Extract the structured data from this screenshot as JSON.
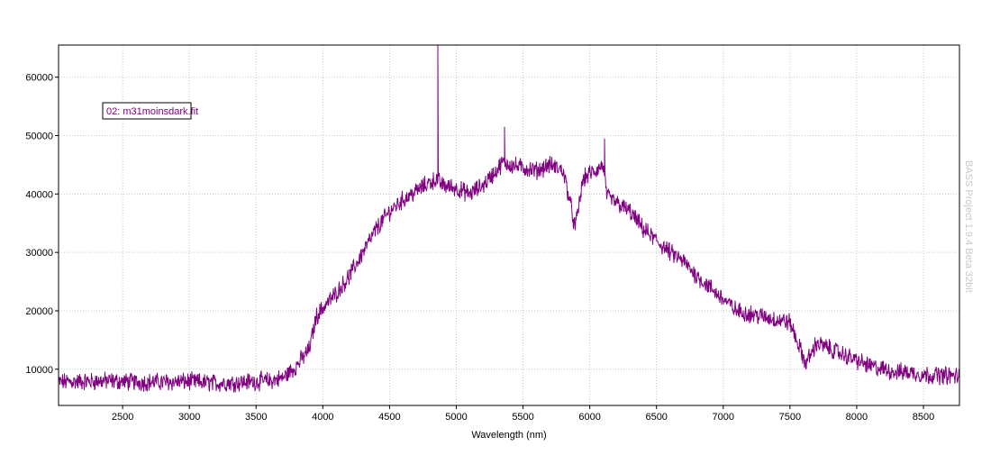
{
  "chart_data": {
    "type": "line",
    "title": "",
    "xlabel": "Wavelength (nm)",
    "ylabel": "",
    "xlim": [
      2020,
      8770
    ],
    "ylim": [
      3800,
      65500
    ],
    "x_ticks": [
      2500,
      3000,
      3500,
      4000,
      4500,
      5000,
      5500,
      6000,
      6500,
      7000,
      7500,
      8000,
      8500
    ],
    "y_ticks": [
      10000,
      20000,
      30000,
      40000,
      50000,
      60000
    ],
    "grid": true,
    "legend": {
      "placement": "top-left",
      "entries": [
        "02: m31moinsdark.fit"
      ]
    },
    "watermark": "BASS Project 1.9.4 Beta 32bit",
    "series": [
      {
        "name": "02: m31moinsdark.fit",
        "color": "#800080",
        "noise": 1300,
        "x": [
          2020,
          2200,
          2400,
          2600,
          2800,
          3000,
          3200,
          3400,
          3600,
          3700,
          3800,
          3900,
          3950,
          4000,
          4100,
          4200,
          4300,
          4400,
          4500,
          4600,
          4700,
          4800,
          4850,
          4900,
          5000,
          5100,
          5200,
          5300,
          5350,
          5400,
          5500,
          5600,
          5700,
          5800,
          5850,
          5890,
          5950,
          6000,
          6050,
          6100,
          6130,
          6200,
          6300,
          6400,
          6500,
          6600,
          6700,
          6800,
          6900,
          7000,
          7100,
          7200,
          7300,
          7400,
          7500,
          7600,
          7620,
          7700,
          7800,
          7900,
          8000,
          8100,
          8200,
          8300,
          8400,
          8500,
          8600,
          8770
        ],
        "y": [
          7800,
          7900,
          8000,
          7800,
          7800,
          7900,
          7600,
          7800,
          8000,
          8500,
          10500,
          13500,
          19000,
          20500,
          23000,
          26000,
          30000,
          34000,
          37000,
          39000,
          40500,
          42000,
          42500,
          41500,
          41000,
          40000,
          41500,
          44000,
          45500,
          45000,
          44500,
          44000,
          45000,
          44000,
          39000,
          34000,
          42500,
          43500,
          44000,
          45000,
          39500,
          38500,
          37000,
          34000,
          32000,
          30000,
          28500,
          26000,
          24000,
          22000,
          20000,
          19500,
          19000,
          18500,
          18000,
          12000,
          11000,
          14500,
          13500,
          12500,
          11500,
          10500,
          10000,
          9500,
          9500,
          9000,
          9000,
          8800
        ]
      }
    ],
    "spikes": [
      {
        "x": 4860,
        "y": 65500
      },
      {
        "x": 5360,
        "y": 51500
      },
      {
        "x": 6110,
        "y": 49500
      }
    ]
  }
}
